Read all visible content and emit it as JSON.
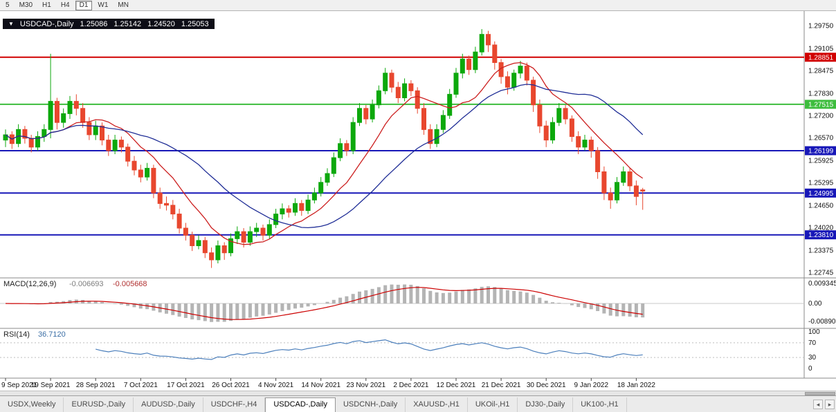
{
  "toolbar": {
    "timeframes": [
      {
        "label": "5",
        "active": false
      },
      {
        "label": "M30",
        "active": false
      },
      {
        "label": "H1",
        "active": false
      },
      {
        "label": "H4",
        "active": false
      },
      {
        "label": "D1",
        "active": true
      },
      {
        "label": "W1",
        "active": false
      },
      {
        "label": "MN",
        "active": false
      }
    ]
  },
  "header": {
    "symbol": "USDCAD-,Daily",
    "open": "1.25086",
    "high": "1.25142",
    "low": "1.24520",
    "close": "1.25053"
  },
  "icons": {
    "collapse": "▼",
    "tab_scroll_left": "◂",
    "tab_scroll_right": "▸"
  },
  "tabs": [
    {
      "label": "USDX,Weekly",
      "active": false
    },
    {
      "label": "EURUSD-,Daily",
      "active": false
    },
    {
      "label": "AUDUSD-,Daily",
      "active": false
    },
    {
      "label": "USDCHF-,H4",
      "active": false
    },
    {
      "label": "USDCAD-,Daily",
      "active": true
    },
    {
      "label": "USDCNH-,Daily",
      "active": false
    },
    {
      "label": "XAUUSD-,H1",
      "active": false
    },
    {
      "label": "UKOil-,H1",
      "active": false
    },
    {
      "label": "DJ30-,Daily",
      "active": false
    },
    {
      "label": "UK100-,H1",
      "active": false
    }
  ],
  "chart_data": {
    "type": "candlestick",
    "symbol": "USDCAD-,Daily",
    "current_ohlc": {
      "open": 1.25086,
      "high": 1.25142,
      "low": 1.2452,
      "close": 1.25053
    },
    "price_axis": [
      "1.29750",
      "1.29105",
      "1.28475",
      "1.27830",
      "1.27200",
      "1.26570",
      "1.25925",
      "1.25295",
      "1.24650",
      "1.24020",
      "1.23375",
      "1.22745"
    ],
    "date_axis": [
      "9 Sep 2021",
      "19 Sep 2021",
      "28 Sep 2021",
      "7 Oct 2021",
      "17 Oct 2021",
      "26 Oct 2021",
      "4 Nov 2021",
      "14 Nov 2021",
      "23 Nov 2021",
      "2 Dec 2021",
      "12 Dec 2021",
      "21 Dec 2021",
      "30 Dec 2021",
      "9 Jan 2022",
      "18 Jan 2022"
    ],
    "tick_every": 7,
    "levels": [
      {
        "price": 1.28851,
        "label": "1.28851",
        "color": "#d10000"
      },
      {
        "price": 1.27515,
        "label": "1.27515",
        "color": "#3dbd3d"
      },
      {
        "price": 1.26199,
        "label": "1.26199",
        "color": "#1717b8"
      },
      {
        "price": 1.24995,
        "label": "1.24995",
        "color": "#1717b8"
      },
      {
        "price": 1.2381,
        "label": "1.23810",
        "color": "#1717b8"
      }
    ],
    "moving_averages": [
      {
        "type": "sma",
        "period": 10,
        "color": "#cc1f1f"
      },
      {
        "type": "sma",
        "period": 24,
        "color": "#1f2d96"
      }
    ],
    "macd": {
      "name": "MACD(12,26,9)",
      "value_main": "-0.006693",
      "value_signal": "-0.005668",
      "params": [
        12,
        26,
        9
      ],
      "axis_labels": [
        "0.009345",
        "0.00",
        "-0.008902"
      ],
      "histogram_color": "#b4b4b4",
      "signal_color": "#cc0000"
    },
    "rsi": {
      "name": "RSI(14)",
      "value": "36.7120",
      "period": 14,
      "axis_labels": [
        "100",
        "70",
        "30",
        "0"
      ],
      "guide_levels": [
        70,
        30
      ],
      "color": "#4a7ebb"
    },
    "colors": {
      "bull": "#0ca80c",
      "bear": "#e8472e",
      "background": "#ffffff"
    },
    "ohlc_order": [
      "open",
      "high",
      "low",
      "close"
    ],
    "candles": [
      [
        1.265,
        1.268,
        1.263,
        1.2665
      ],
      [
        1.2665,
        1.2675,
        1.2625,
        1.264
      ],
      [
        1.264,
        1.2695,
        1.263,
        1.268
      ],
      [
        1.268,
        1.269,
        1.264,
        1.2655
      ],
      [
        1.2655,
        1.2665,
        1.2615,
        1.263
      ],
      [
        1.263,
        1.2675,
        1.262,
        1.266
      ],
      [
        1.266,
        1.2695,
        1.2645,
        1.268
      ],
      [
        1.268,
        1.2895,
        1.2655,
        1.276
      ],
      [
        1.276,
        1.277,
        1.268,
        1.27
      ],
      [
        1.27,
        1.274,
        1.2685,
        1.2725
      ],
      [
        1.2725,
        1.2775,
        1.271,
        1.276
      ],
      [
        1.276,
        1.278,
        1.272,
        1.274
      ],
      [
        1.274,
        1.2755,
        1.2685,
        1.27
      ],
      [
        1.27,
        1.2715,
        1.265,
        1.2665
      ],
      [
        1.2665,
        1.2705,
        1.265,
        1.269
      ],
      [
        1.269,
        1.27,
        1.2635,
        1.265
      ],
      [
        1.265,
        1.2665,
        1.2605,
        1.262
      ],
      [
        1.262,
        1.2665,
        1.261,
        1.265
      ],
      [
        1.265,
        1.266,
        1.2615,
        1.263
      ],
      [
        1.263,
        1.264,
        1.2575,
        1.259
      ],
      [
        1.259,
        1.2605,
        1.255,
        1.2565
      ],
      [
        1.2565,
        1.258,
        1.253,
        1.2545
      ],
      [
        1.2545,
        1.2585,
        1.2535,
        1.257
      ],
      [
        1.257,
        1.258,
        1.2485,
        1.25
      ],
      [
        1.25,
        1.2515,
        1.2455,
        1.247
      ],
      [
        1.247,
        1.249,
        1.245,
        1.2465
      ],
      [
        1.2465,
        1.248,
        1.2425,
        1.244
      ],
      [
        1.244,
        1.2455,
        1.2385,
        1.24
      ],
      [
        1.24,
        1.2415,
        1.2365,
        1.238
      ],
      [
        1.238,
        1.239,
        1.2335,
        1.235
      ],
      [
        1.235,
        1.238,
        1.234,
        1.2365
      ],
      [
        1.2365,
        1.2375,
        1.2315,
        1.233
      ],
      [
        1.233,
        1.2345,
        1.2287,
        1.231
      ],
      [
        1.231,
        1.2365,
        1.23,
        1.235
      ],
      [
        1.235,
        1.236,
        1.231,
        1.233
      ],
      [
        1.233,
        1.2385,
        1.232,
        1.237
      ],
      [
        1.237,
        1.2405,
        1.2355,
        1.239
      ],
      [
        1.239,
        1.24,
        1.2345,
        1.236
      ],
      [
        1.236,
        1.2405,
        1.235,
        1.239
      ],
      [
        1.239,
        1.2415,
        1.2375,
        1.24
      ],
      [
        1.24,
        1.241,
        1.2365,
        1.238
      ],
      [
        1.238,
        1.2425,
        1.237,
        1.241
      ],
      [
        1.241,
        1.2455,
        1.24,
        1.244
      ],
      [
        1.244,
        1.247,
        1.2425,
        1.2455
      ],
      [
        1.2455,
        1.2465,
        1.243,
        1.2445
      ],
      [
        1.2445,
        1.2485,
        1.2435,
        1.247
      ],
      [
        1.247,
        1.248,
        1.2435,
        1.245
      ],
      [
        1.245,
        1.2495,
        1.244,
        1.248
      ],
      [
        1.248,
        1.2515,
        1.247,
        1.25
      ],
      [
        1.25,
        1.2545,
        1.249,
        1.253
      ],
      [
        1.253,
        1.257,
        1.252,
        1.2555
      ],
      [
        1.2555,
        1.2615,
        1.2545,
        1.26
      ],
      [
        1.26,
        1.2655,
        1.259,
        1.264
      ],
      [
        1.264,
        1.265,
        1.2605,
        1.262
      ],
      [
        1.262,
        1.2715,
        1.261,
        1.27
      ],
      [
        1.27,
        1.2755,
        1.269,
        1.274
      ],
      [
        1.274,
        1.275,
        1.2695,
        1.271
      ],
      [
        1.271,
        1.2765,
        1.27,
        1.275
      ],
      [
        1.275,
        1.2805,
        1.274,
        1.279
      ],
      [
        1.279,
        1.2855,
        1.278,
        1.284
      ],
      [
        1.284,
        1.285,
        1.2785,
        1.28
      ],
      [
        1.28,
        1.2815,
        1.2755,
        1.277
      ],
      [
        1.277,
        1.2825,
        1.276,
        1.281
      ],
      [
        1.281,
        1.282,
        1.2775,
        1.279
      ],
      [
        1.279,
        1.28,
        1.2725,
        1.274
      ],
      [
        1.274,
        1.2755,
        1.2665,
        1.268
      ],
      [
        1.268,
        1.2695,
        1.2625,
        1.264
      ],
      [
        1.264,
        1.2695,
        1.263,
        1.268
      ],
      [
        1.268,
        1.2735,
        1.267,
        1.272
      ],
      [
        1.272,
        1.2795,
        1.271,
        1.278
      ],
      [
        1.278,
        1.2855,
        1.277,
        1.284
      ],
      [
        1.284,
        1.2895,
        1.2825,
        1.288
      ],
      [
        1.288,
        1.289,
        1.2835,
        1.285
      ],
      [
        1.285,
        1.2915,
        1.284,
        1.29
      ],
      [
        1.29,
        1.2965,
        1.289,
        1.295
      ],
      [
        1.295,
        1.296,
        1.29,
        1.292
      ],
      [
        1.292,
        1.293,
        1.285,
        1.287
      ],
      [
        1.287,
        1.288,
        1.281,
        1.283
      ],
      [
        1.283,
        1.2845,
        1.278,
        1.28
      ],
      [
        1.28,
        1.285,
        1.279,
        1.284
      ],
      [
        1.284,
        1.2875,
        1.2825,
        1.286
      ],
      [
        1.286,
        1.287,
        1.2805,
        1.282
      ],
      [
        1.282,
        1.283,
        1.273,
        1.275
      ],
      [
        1.275,
        1.2765,
        1.267,
        1.269
      ],
      [
        1.269,
        1.2705,
        1.263,
        1.265
      ],
      [
        1.265,
        1.2715,
        1.264,
        1.27
      ],
      [
        1.27,
        1.2755,
        1.269,
        1.274
      ],
      [
        1.274,
        1.275,
        1.2695,
        1.271
      ],
      [
        1.271,
        1.272,
        1.2645,
        1.266
      ],
      [
        1.266,
        1.2675,
        1.261,
        1.263
      ],
      [
        1.263,
        1.2665,
        1.262,
        1.265
      ],
      [
        1.265,
        1.266,
        1.26,
        1.262
      ],
      [
        1.262,
        1.263,
        1.254,
        1.256
      ],
      [
        1.256,
        1.2575,
        1.248,
        1.25
      ],
      [
        1.25,
        1.2515,
        1.2455,
        1.248
      ],
      [
        1.248,
        1.2545,
        1.247,
        1.253
      ],
      [
        1.253,
        1.2575,
        1.252,
        1.256
      ],
      [
        1.256,
        1.257,
        1.2505,
        1.252
      ],
      [
        1.252,
        1.2535,
        1.2465,
        1.249
      ],
      [
        1.25086,
        1.25142,
        1.2452,
        1.25053
      ]
    ]
  }
}
